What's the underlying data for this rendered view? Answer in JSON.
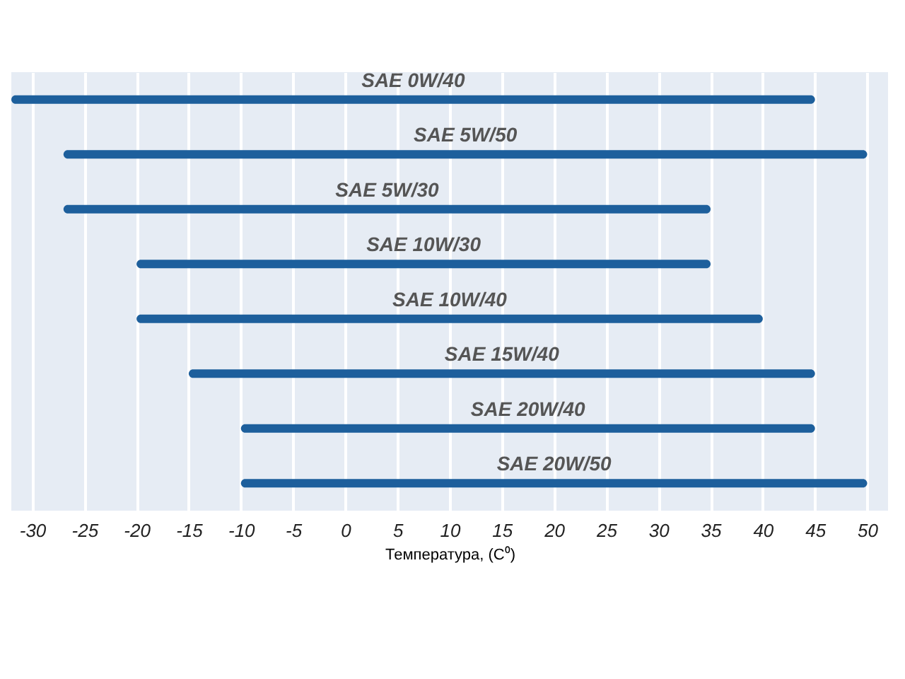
{
  "chart_data": {
    "type": "bar",
    "orientation": "horizontal",
    "xlabel": "Температура, (C⁰)",
    "categories": [
      "SAE 0W/40",
      "SAE 5W/50",
      "SAE 5W/30",
      "SAE 10W/30",
      "SAE 10W/40",
      "SAE 15W/40",
      "SAE 20W/40",
      "SAE 20W/50"
    ],
    "base": [
      -32,
      -27,
      -27,
      -20,
      -20,
      -15,
      -10,
      -10
    ],
    "values": [
      77,
      77,
      62,
      55,
      60,
      60,
      55,
      60
    ],
    "color": "#1d5f9c",
    "marker": "circle",
    "xlim": [
      -32,
      52
    ],
    "xticks": [
      -30,
      -25,
      -20,
      -15,
      -10,
      -5,
      0,
      5,
      10,
      15,
      20,
      25,
      30,
      35,
      40,
      45,
      50
    ],
    "grid": "x"
  }
}
